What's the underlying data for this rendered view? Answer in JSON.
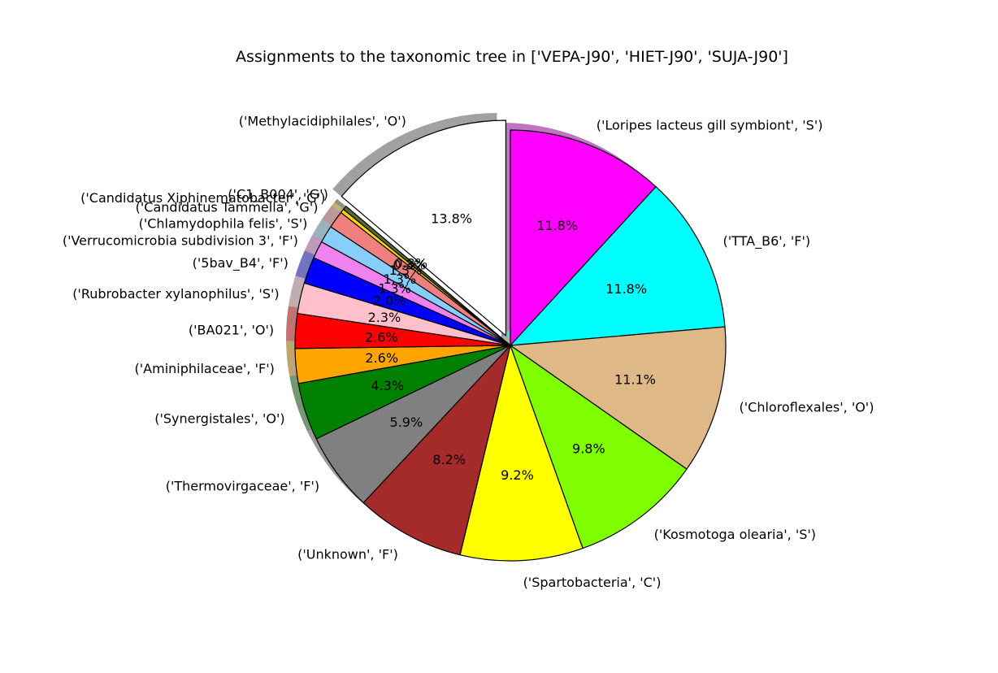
{
  "chart_data": {
    "type": "pie",
    "title": "Assignments to the taxonomic tree in ['VEPA-J90', 'HIET-J90', 'SUJA-J90']",
    "start_angle_deg": 90,
    "direction": "clockwise",
    "shadow": true,
    "exploded": [
      "('Methylacidiphilales', 'O')"
    ],
    "slices": [
      {
        "label": "('Loripes lacteus gill symbiont', 'S')",
        "value": 11.8,
        "pct_label": "11.8%",
        "color": "#ff00ff"
      },
      {
        "label": "('TTA_B6', 'F')",
        "value": 11.8,
        "pct_label": "11.8%",
        "color": "#00ffff"
      },
      {
        "label": "('Chloroflexales', 'O')",
        "value": 11.1,
        "pct_label": "11.1%",
        "color": "#deb887"
      },
      {
        "label": "('Kosmotoga olearia', 'S')",
        "value": 9.8,
        "pct_label": "9.8%",
        "color": "#7fff00"
      },
      {
        "label": "('Spartobacteria', 'C')",
        "value": 9.2,
        "pct_label": "9.2%",
        "color": "#ffff00"
      },
      {
        "label": "('Unknown', 'F')",
        "value": 8.2,
        "pct_label": "8.2%",
        "color": "#a52a2a"
      },
      {
        "label": "('Thermovirgaceae', 'F')",
        "value": 5.9,
        "pct_label": "5.9%",
        "color": "#808080"
      },
      {
        "label": "('Synergistales', 'O')",
        "value": 4.3,
        "pct_label": "4.3%",
        "color": "#008000"
      },
      {
        "label": "('Aminiphilaceae', 'F')",
        "value": 2.6,
        "pct_label": "2.6%",
        "color": "#ffa500"
      },
      {
        "label": "('BA021', 'O')",
        "value": 2.6,
        "pct_label": "2.6%",
        "color": "#ff0000"
      },
      {
        "label": "('Rubrobacter xylanophilus', 'S')",
        "value": 2.3,
        "pct_label": "2.3%",
        "color": "#ffc0cb"
      },
      {
        "label": "('5bav_B4', 'F')",
        "value": 2.0,
        "pct_label": "2.0%",
        "color": "#0000ff"
      },
      {
        "label": "('Verrucomicrobia subdivision 3', 'F')",
        "value": 1.3,
        "pct_label": "1.3%",
        "color": "#ee82ee"
      },
      {
        "label": "('Chlamydophila felis', 'S')",
        "value": 1.3,
        "pct_label": "1.3%",
        "color": "#87cefa"
      },
      {
        "label": "('Candidatus Tammella', 'G')",
        "value": 1.3,
        "pct_label": "1.3%",
        "color": "#f08080"
      },
      {
        "label": "('Candidatus Xiphinematobacter', 'G')",
        "value": 0.3,
        "pct_label": "0.3%",
        "color": "#ffd700"
      },
      {
        "label": "('C1_B004', 'G')",
        "value": 0.3,
        "pct_label": "0.3%",
        "color": "#556b2f"
      },
      {
        "label": "('Methylacidiphilales', 'O')",
        "value": 13.8,
        "pct_label": "13.8%",
        "color": "#ffffff"
      }
    ]
  }
}
